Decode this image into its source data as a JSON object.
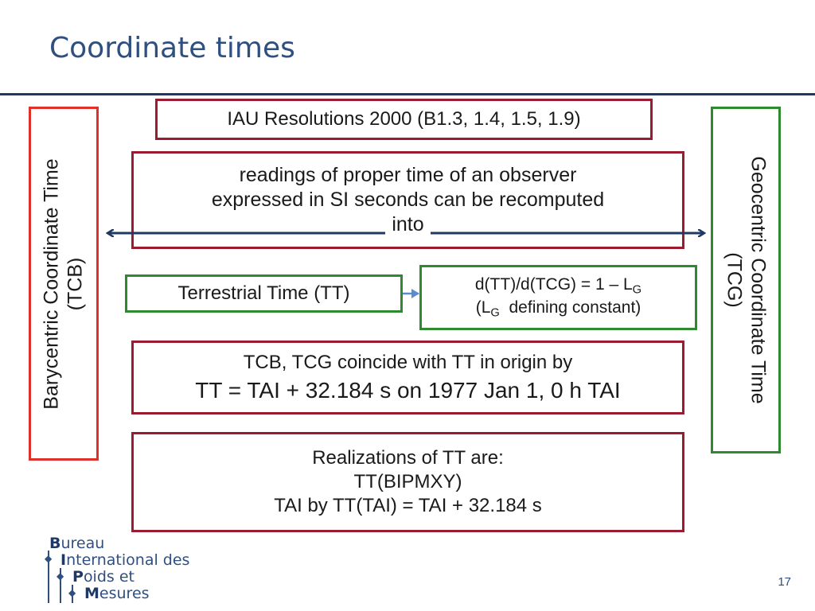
{
  "slide": {
    "title": "Coordinate times",
    "page_number": "17"
  },
  "left_box": {
    "line1": "Barycentric Coordinate Time",
    "line2": "(TCB)"
  },
  "right_box": {
    "line1": "Geocentric Coordinate Time",
    "line2": "(TCG)"
  },
  "boxes": {
    "iau": "IAU Resolutions 2000 (B1.3, 1.4, 1.5, 1.9)",
    "readings_line1": "readings of proper time of an observer",
    "readings_line2": "expressed in SI seconds can be recomputed",
    "readings_line3": "into",
    "tt": "Terrestrial Time (TT)",
    "deriv_prefix": "d(TT)/d(TCG) = 1 – L",
    "deriv_sub": "G",
    "deriv_line2_open": "(L",
    "deriv_line2_sub": "G",
    "deriv_line2_rest": "  defining constant)",
    "coincide_line1": "TCB, TCG coincide with TT in origin by",
    "coincide_line2": "TT = TAI + 32.184 s on 1977 Jan 1, 0 h TAI",
    "realizations_line1": "Realizations of TT are:",
    "realizations_line2": "TT(BIPMXY)",
    "realizations_line3": "TAI by TT(TAI) = TAI + 32.184 s"
  },
  "logo": {
    "line1_cap": "B",
    "line1_rest": "ureau",
    "line2_cap": "I",
    "line2_rest": "nternational des",
    "line3_cap": "P",
    "line3_rest": "oids et",
    "line4_cap": "M",
    "line4_rest": "esures"
  },
  "colors": {
    "title": "#2f4f80",
    "red_border": "#9b1b30",
    "tcb_border": "#e0302a",
    "green_border": "#2f8a2f",
    "arrow": "#1f3864",
    "small_arrow": "#5b8bd0"
  }
}
